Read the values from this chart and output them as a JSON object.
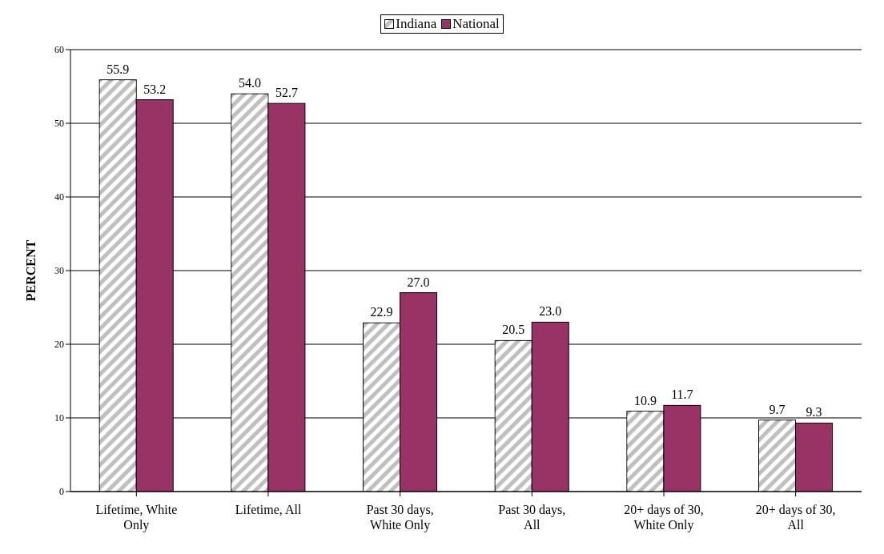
{
  "chart_data": {
    "type": "bar",
    "ylabel": "PERCENT",
    "categories": [
      "Lifetime, White Only",
      "Lifetime, All",
      "Past 30 days, White Only",
      "Past 30 days, All",
      "20+ days of 30, White Only",
      "20+ days of 30, All"
    ],
    "series": [
      {
        "name": "Indiana",
        "color": "#c0c0c0",
        "values": [
          55.9,
          54.0,
          22.9,
          20.5,
          10.9,
          9.7
        ]
      },
      {
        "name": "National",
        "color": "#993366",
        "values": [
          53.2,
          52.7,
          27.0,
          23.0,
          11.7,
          9.3
        ]
      }
    ],
    "value_labels": [
      [
        "55.9",
        "54.0",
        "22.9",
        "20.5",
        "10.9",
        "9.7"
      ],
      [
        "53.2",
        "52.7",
        "27.0",
        "23.0",
        "11.7",
        "9.3"
      ]
    ],
    "ylim": [
      0,
      60
    ],
    "yticks": [
      0,
      10,
      20,
      30,
      40,
      50,
      60
    ],
    "grid": "y",
    "legend": "top"
  }
}
